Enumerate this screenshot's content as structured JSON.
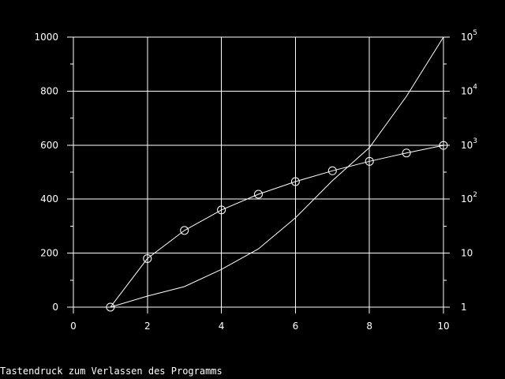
{
  "chart_data": {
    "type": "line",
    "grid": true,
    "xlim": [
      0,
      10
    ],
    "ylim": [
      0,
      1000
    ],
    "y2lim": [
      1,
      100000
    ],
    "y2scale": "log",
    "x_ticks": [
      "0",
      "2",
      "4",
      "6",
      "8",
      "10"
    ],
    "y_ticks": [
      "0",
      "200",
      "400",
      "600",
      "800",
      "1000"
    ],
    "y2_ticks": [
      {
        "base": "1",
        "exp": ""
      },
      {
        "base": "10",
        "exp": ""
      },
      {
        "base": "10",
        "exp": "2"
      },
      {
        "base": "10",
        "exp": "3"
      },
      {
        "base": "10",
        "exp": "4"
      },
      {
        "base": "10",
        "exp": "5"
      }
    ],
    "series": [
      {
        "axis": "left",
        "marker": "circle",
        "x": [
          1,
          2,
          3,
          4,
          5,
          6,
          7,
          8,
          9,
          10
        ],
        "y": [
          0,
          180,
          284,
          360,
          418,
          465,
          505,
          540,
          571,
          599
        ]
      },
      {
        "axis": "right",
        "marker": "none",
        "x": [
          1,
          2,
          3,
          4,
          5,
          6,
          7,
          8,
          9,
          10
        ],
        "y": [
          1,
          1.6,
          2.4,
          5,
          12,
          45,
          220,
          900,
          8000,
          100000
        ]
      }
    ]
  },
  "colors": {
    "background": "#000000",
    "foreground": "#ffffff"
  },
  "status_text": "Tastendruck zum Verlassen des Programms"
}
